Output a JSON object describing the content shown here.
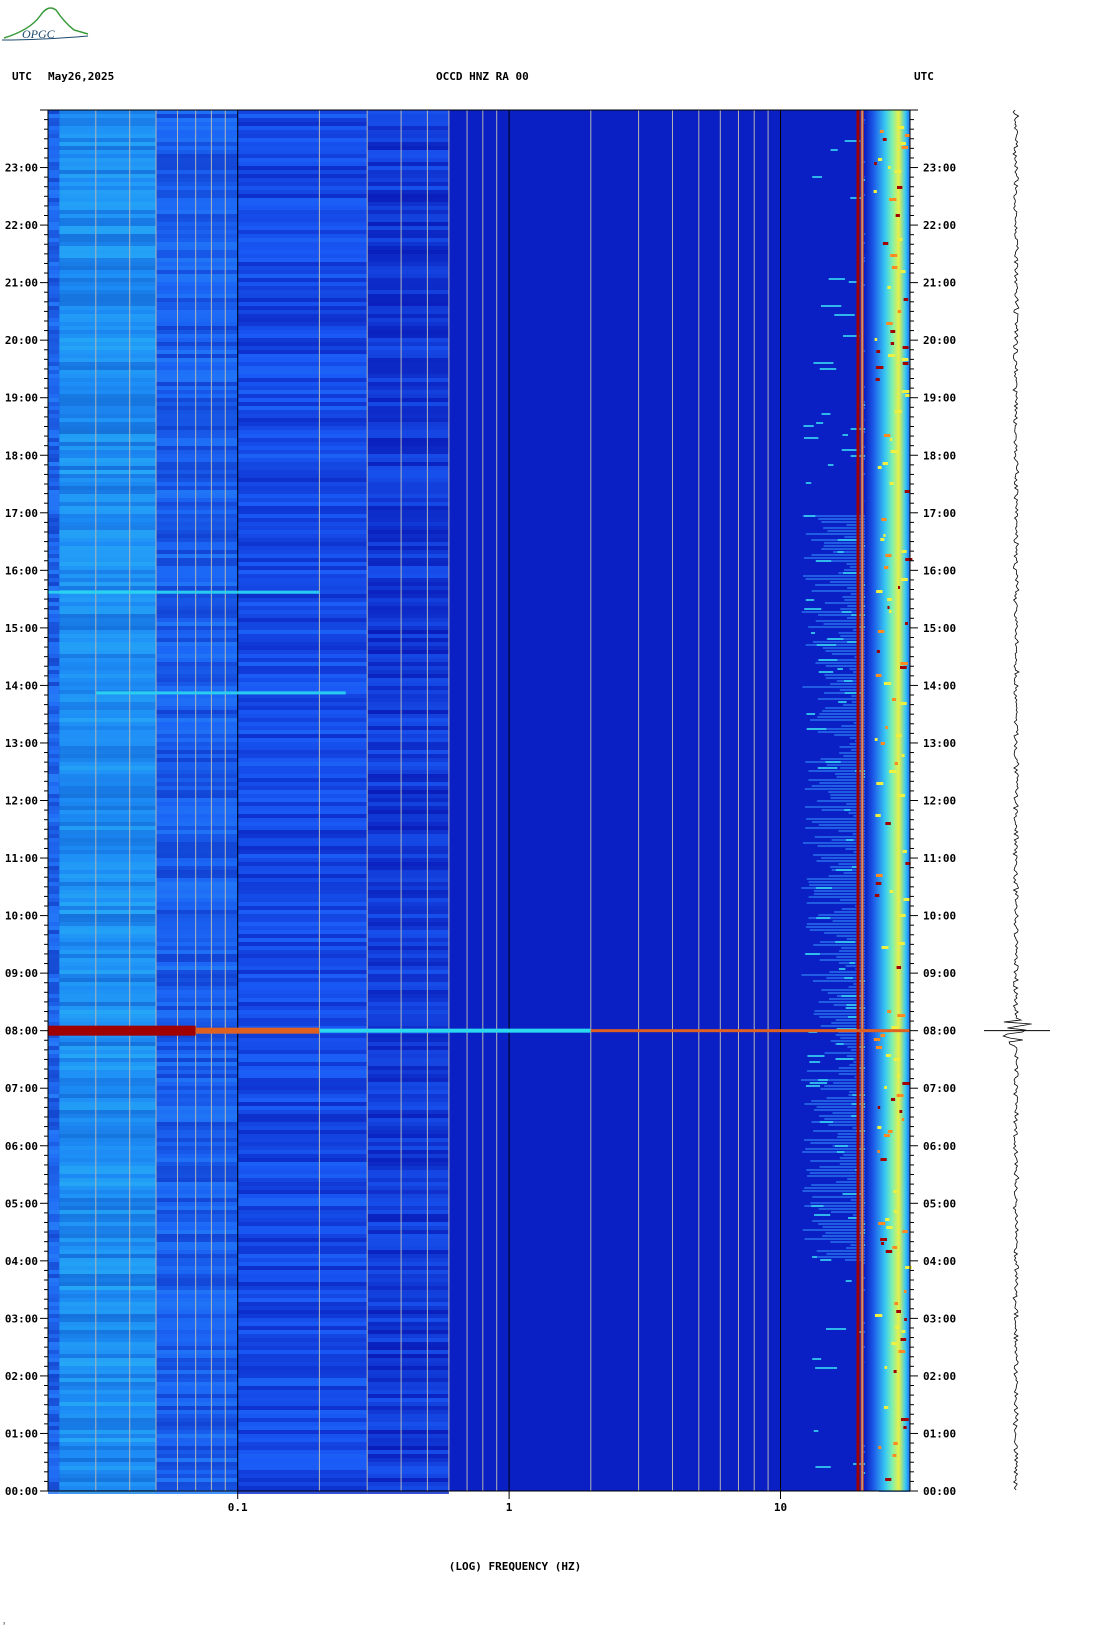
{
  "logo_text": "OPGC",
  "header": {
    "left_utc": "UTC",
    "date": "May26,2025",
    "station": "OCCD HNZ RA 00",
    "right_utc": "UTC"
  },
  "corner_mark": "ˀ",
  "colors": {
    "background_blue": "#0a1fc4",
    "low_freq_band": "#1e6df0",
    "bright_cyan": "#2ad8f0",
    "event_red": "#a00000",
    "hot_yellow": "#f0f040"
  },
  "chart_data": {
    "type": "heatmap",
    "title": "OCCD HNZ RA 00",
    "date": "May26,2025",
    "xlabel": "(LOG) FREQUENCY (HZ)",
    "x_scale": "log",
    "xlim": [
      0.02,
      30
    ],
    "x_ticks": [
      {
        "value": 0.1,
        "label": "0.1"
      },
      {
        "value": 1,
        "label": "1"
      },
      {
        "value": 10,
        "label": "10"
      }
    ],
    "x_gridlines": [
      0.03,
      0.04,
      0.05,
      0.06,
      0.07,
      0.08,
      0.09,
      0.1,
      0.2,
      0.3,
      0.4,
      0.5,
      0.6,
      0.7,
      0.8,
      0.9,
      1,
      2,
      3,
      4,
      5,
      6,
      7,
      8,
      9,
      10,
      20
    ],
    "y_unit": "UTC hours",
    "ylim": [
      0,
      24
    ],
    "y_ticks": [
      "00:00",
      "01:00",
      "02:00",
      "03:00",
      "04:00",
      "05:00",
      "06:00",
      "07:00",
      "08:00",
      "09:00",
      "10:00",
      "11:00",
      "12:00",
      "13:00",
      "14:00",
      "15:00",
      "16:00",
      "17:00",
      "18:00",
      "19:00",
      "20:00",
      "21:00",
      "22:00",
      "23:00"
    ],
    "events": [
      {
        "name": "earthquake",
        "time_hours": 8.0,
        "freq_range_hz": [
          0.02,
          30
        ],
        "color": "#a00000"
      },
      {
        "name": "line-1",
        "time_hours": 15.62,
        "freq_range_hz": [
          0.02,
          0.2
        ],
        "color": "#2ad8f0"
      },
      {
        "name": "line-2",
        "time_hours": 13.87,
        "freq_range_hz": [
          0.03,
          0.25
        ],
        "color": "#2ad8f0"
      }
    ],
    "persistent_lines_hz": [
      19.3,
      20.0
    ],
    "grid": true,
    "trace": {
      "event_time_hours": 8.0
    }
  }
}
